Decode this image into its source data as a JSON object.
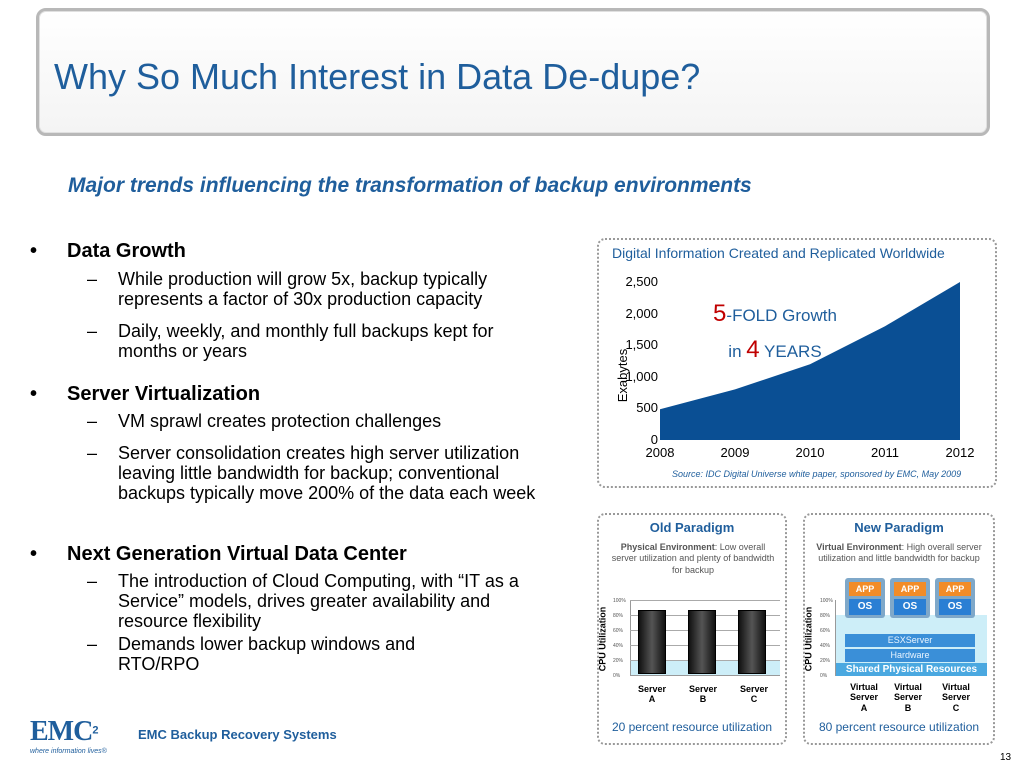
{
  "slide": {
    "title": "Why So Much Interest in Data De-dupe?",
    "subtitle": "Major trends influencing the transformation of backup environments",
    "page_number": "13"
  },
  "bullets": [
    {
      "heading": "Data Growth",
      "items": [
        "While production will grow 5x, backup typically represents a factor of 30x production capacity",
        "Daily, weekly, and monthly full backups kept for months or years"
      ]
    },
    {
      "heading": "Server Virtualization",
      "items": [
        "VM sprawl creates protection challenges",
        "Server consolidation creates high server utilization leaving little bandwidth for backup; conventional backups typically move 200% of the data each week"
      ]
    },
    {
      "heading": "Next Generation Virtual Data Center",
      "items": [
        "The introduction of Cloud Computing, with “IT as a Service” models, drives greater availability and resource flexibility",
        "Demands lower backup windows and RTO/RPO"
      ]
    }
  ],
  "chart_data": {
    "type": "area",
    "title": "Digital Information Created and Replicated Worldwide",
    "ylabel": "Exabytes",
    "x": [
      "2008",
      "2009",
      "2010",
      "2011",
      "2012"
    ],
    "values": [
      487,
      800,
      1200,
      1800,
      2500
    ],
    "ylim": [
      0,
      2500
    ],
    "yticks": [
      "0",
      "500",
      "1,000",
      "1,500",
      "2,000",
      "2,500"
    ],
    "fill_color": "#0a4f94",
    "annotation": {
      "num1": "5",
      "text1": "-FOLD Growth",
      "pre2": "in ",
      "num2": "4",
      "text2": " YEARS"
    },
    "source": "Source: IDC Digital Universe white paper, sponsored by EMC, May 2009"
  },
  "old_paradigm": {
    "title": "Old Paradigm",
    "desc_bold": "Physical Environment",
    "desc": ": Low overall server utilization and plenty of bandwidth for backup",
    "cpu_label": "CPU Utilization",
    "pct_ticks": [
      "100%",
      "80%",
      "60%",
      "40%",
      "20%",
      "0%"
    ],
    "servers": [
      {
        "line1": "Server",
        "line2": "A"
      },
      {
        "line1": "Server",
        "line2": "B"
      },
      {
        "line1": "Server",
        "line2": "C"
      }
    ],
    "util_level": 0.2,
    "utilization": "20 percent resource utilization"
  },
  "new_paradigm": {
    "title": "New Paradigm",
    "desc_bold": "Virtual Environment",
    "desc": ": High overall server utilization and little bandwidth for backup",
    "cpu_label": "CPU Utilization",
    "pct_ticks": [
      "100%",
      "80%",
      "60%",
      "40%",
      "20%",
      "0%"
    ],
    "app_label": "APP",
    "os_label": "OS",
    "esx_label": "ESXServer",
    "hw_label": "Hardware",
    "shared_label": "Shared Physical Resources",
    "servers": [
      {
        "line1": "Virtual",
        "line2": "Server",
        "line3": "A"
      },
      {
        "line1": "Virtual",
        "line2": "Server",
        "line3": "B"
      },
      {
        "line1": "Virtual",
        "line2": "Server",
        "line3": "C"
      }
    ],
    "util_level": 0.8,
    "utilization": "80 percent resource utilization"
  },
  "footer": {
    "logo": "EMC",
    "logo_sup": "2",
    "tagline": "where information lives®",
    "product": "EMC Backup Recovery Systems"
  }
}
